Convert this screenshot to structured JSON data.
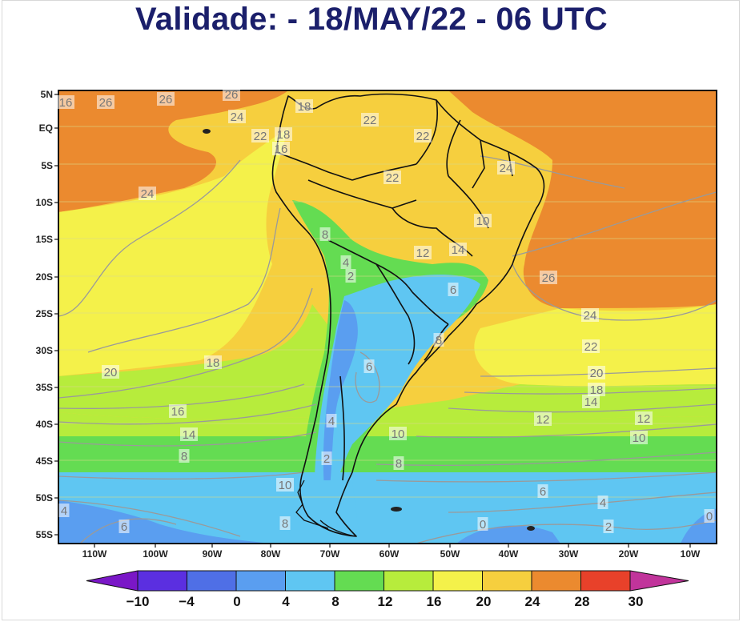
{
  "header": {
    "title": "Validade: - 18/MAY/22 - 06 UTC"
  },
  "map": {
    "latitude_ticks": [
      "5N",
      "EQ",
      "5S",
      "10S",
      "15S",
      "20S",
      "25S",
      "30S",
      "35S",
      "40S",
      "45S",
      "50S",
      "55S"
    ],
    "longitude_ticks": [
      "110W",
      "100W",
      "90W",
      "80W",
      "70W",
      "60W",
      "50W",
      "40W",
      "30W",
      "20W",
      "10W"
    ],
    "contour_labels": [
      {
        "text": "16"
      },
      {
        "text": "26"
      },
      {
        "text": "26"
      },
      {
        "text": "26"
      },
      {
        "text": "24"
      },
      {
        "text": "18"
      },
      {
        "text": "22"
      },
      {
        "text": "18"
      },
      {
        "text": "24"
      },
      {
        "text": "22"
      },
      {
        "text": "22"
      },
      {
        "text": "22"
      },
      {
        "text": "24"
      },
      {
        "text": "10"
      },
      {
        "text": "8"
      },
      {
        "text": "14"
      },
      {
        "text": "12"
      },
      {
        "text": "4"
      },
      {
        "text": "2"
      },
      {
        "text": "6"
      },
      {
        "text": "26"
      },
      {
        "text": "24"
      },
      {
        "text": "8"
      },
      {
        "text": "22"
      },
      {
        "text": "6"
      },
      {
        "text": "20"
      },
      {
        "text": "20"
      },
      {
        "text": "18"
      },
      {
        "text": "18"
      },
      {
        "text": "16"
      },
      {
        "text": "16"
      },
      {
        "text": "14"
      },
      {
        "text": "14"
      },
      {
        "text": "12"
      },
      {
        "text": "4"
      },
      {
        "text": "10"
      },
      {
        "text": "10"
      },
      {
        "text": "12"
      },
      {
        "text": "8"
      },
      {
        "text": "2"
      },
      {
        "text": "8"
      },
      {
        "text": "10"
      },
      {
        "text": "6"
      },
      {
        "text": "4"
      },
      {
        "text": "4"
      },
      {
        "text": "6"
      },
      {
        "text": "8"
      },
      {
        "text": "0"
      },
      {
        "text": "2"
      },
      {
        "text": "0"
      }
    ]
  },
  "colorbar": {
    "labels": [
      "−10",
      "−4",
      "0",
      "4",
      "8",
      "12",
      "16",
      "20",
      "24",
      "28",
      "30"
    ],
    "colors": [
      "#7a17c7",
      "#5b2fe0",
      "#4f6fe6",
      "#5a9ef0",
      "#5fc6f2",
      "#64dc52",
      "#b7ec3c",
      "#f4f14a",
      "#f6cf3e",
      "#eb8a2f",
      "#e8412a",
      "#c1349b"
    ]
  }
}
